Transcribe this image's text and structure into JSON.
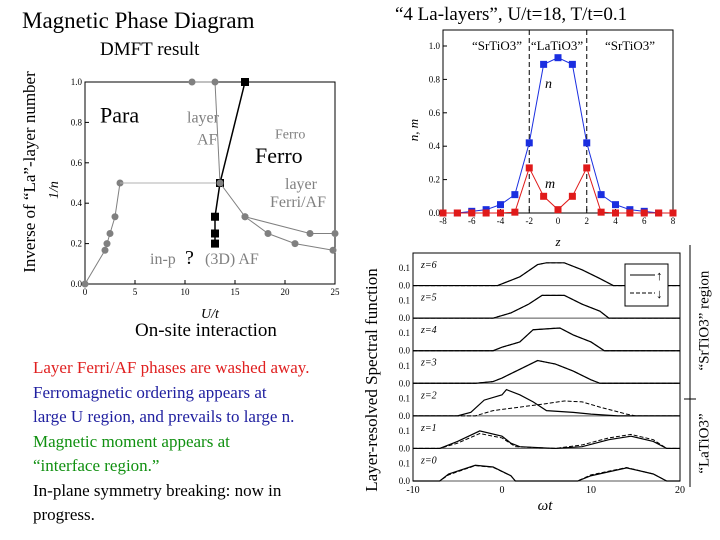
{
  "slide": {
    "title": "Magnetic Phase Diagram",
    "subtitle": "DMFT result",
    "left_ylabel": "Inverse of “La”-layer number",
    "top_right_title": "“4 La-layers”, U/t=18, T/t=0.1",
    "spectral_ylabel": "Layer-resolved Spectral function",
    "region_sr": "“SrTiO3” region",
    "region_la": "“LaTiO3”",
    "onsite": "On-site interaction",
    "notes": [
      {
        "text": "Layer Ferri/AF phases are washed away.",
        "color": "#e02020"
      },
      {
        "text": "Ferromagnetic ordering appears at",
        "color": "#2020a0"
      },
      {
        "text": "large U region, and prevails to large n.",
        "color": "#2020a0"
      },
      {
        "text": "Magnetic moment appears at",
        "color": "#109010"
      },
      {
        "text": "“interface region.”",
        "color": "#109010"
      },
      {
        "text": "In-plane symmetry breaking: now in",
        "color": "#000000"
      },
      {
        "text": "progress.",
        "color": "#000000"
      }
    ]
  },
  "chart_data": [
    {
      "type": "scatter",
      "title": "",
      "xlabel": "U/t",
      "ylabel": "1/n",
      "xlim": [
        0,
        25
      ],
      "ylim": [
        0,
        1
      ],
      "xticks": [
        "0",
        "5",
        "10",
        "15",
        "20",
        "25"
      ],
      "yticks": [
        "0.0",
        "0.2",
        "0.4",
        "0.6",
        "0.8",
        "1.0"
      ],
      "series": [
        {
          "marker": "circle",
          "color": "#808080",
          "points": [
            [
              0,
              0
            ],
            [
              2,
              0.167
            ],
            [
              2.2,
              0.2
            ],
            [
              2.5,
              0.25
            ],
            [
              3,
              0.333
            ],
            [
              3.5,
              0.5
            ]
          ]
        },
        {
          "marker": "none",
          "color": "#b0b0b0",
          "points": [
            [
              3.5,
              0.5
            ],
            [
              13.5,
              0.5
            ]
          ]
        },
        {
          "marker": "circle",
          "color": "#808080",
          "points": [
            [
              10.7,
              1.0
            ],
            [
              13,
              1.0
            ]
          ]
        },
        {
          "marker": "none",
          "color": "#808080",
          "points": [
            [
              13,
              1.0
            ],
            [
              13.5,
              0.5
            ]
          ]
        },
        {
          "marker": "square",
          "color": "#000000",
          "points": [
            [
              13,
              0.2
            ],
            [
              13,
              0.25
            ],
            [
              13,
              0.333
            ],
            [
              13.5,
              0.5
            ],
            [
              16,
              1.0
            ]
          ]
        },
        {
          "marker": "circle",
          "color": "#808080",
          "points": [
            [
              13.5,
              0.5
            ],
            [
              16,
              0.333
            ],
            [
              22.5,
              0.25
            ],
            [
              25,
              0.25
            ]
          ]
        },
        {
          "marker": "circle",
          "color": "#808080",
          "points": [
            [
              16,
              0.333
            ],
            [
              18.3,
              0.25
            ],
            [
              21,
              0.2
            ],
            [
              24.8,
              0.167
            ]
          ]
        }
      ],
      "annotations": [
        {
          "text": "Para",
          "x": 1.5,
          "y": 0.8,
          "color": "#000000",
          "size": 22
        },
        {
          "text": "layer",
          "x": 10.2,
          "y": 0.8,
          "color": "#808080",
          "size": 16
        },
        {
          "text": "AF",
          "x": 11.2,
          "y": 0.69,
          "color": "#808080",
          "size": 16
        },
        {
          "text": "Ferro",
          "x": 19,
          "y": 0.72,
          "color": "#808080",
          "size": 14
        },
        {
          "text": "Ferro",
          "x": 17,
          "y": 0.6,
          "color": "#000000",
          "size": 22
        },
        {
          "text": "layer",
          "x": 20,
          "y": 0.47,
          "color": "#808080",
          "size": 16
        },
        {
          "text": "Ferri/AF",
          "x": 18.5,
          "y": 0.38,
          "color": "#808080",
          "size": 16
        },
        {
          "text": "in-p",
          "x": 6.5,
          "y": 0.1,
          "color": "#808080",
          "size": 16
        },
        {
          "text": "?",
          "x": 10,
          "y": 0.1,
          "color": "#000000",
          "size": 20
        },
        {
          "text": "(3D) AF",
          "x": 12,
          "y": 0.1,
          "color": "#808080",
          "size": 16
        }
      ]
    },
    {
      "type": "line",
      "title": "",
      "xlabel": "z",
      "ylabel": "n, m",
      "xlim": [
        -8,
        8
      ],
      "ylim": [
        0,
        1.1
      ],
      "xticks": [
        "-8",
        "-6",
        "-4",
        "-2",
        "0",
        "2",
        "4",
        "6",
        "8"
      ],
      "yticks": [
        "0.0",
        "0.2",
        "0.4",
        "0.6",
        "0.8",
        "1.0"
      ],
      "x": [
        -8,
        -7,
        -6,
        -5,
        -4,
        -3,
        -2,
        -1,
        0,
        1,
        2,
        3,
        4,
        5,
        6,
        7,
        8
      ],
      "series": [
        {
          "name": "n",
          "color": "#1a2ee0",
          "values": [
            0,
            0,
            0.01,
            0.02,
            0.05,
            0.11,
            0.42,
            0.89,
            0.93,
            0.89,
            0.42,
            0.11,
            0.05,
            0.02,
            0.01,
            0,
            0
          ]
        },
        {
          "name": "m",
          "color": "#e01a1a",
          "values": [
            0,
            0,
            0,
            0,
            0,
            0.005,
            0.27,
            0.1,
            0.02,
            0.1,
            0.27,
            0.005,
            0,
            0,
            0,
            0,
            0
          ]
        }
      ],
      "region_labels": [
        "“SrTiO3”",
        "“LaTiO3”",
        "“SrTiO3”"
      ],
      "dashed_lines_x": [
        -2,
        2
      ]
    },
    {
      "type": "line",
      "title": "",
      "xlabel": "ωt",
      "ylabel": "",
      "xlim": [
        -10,
        20
      ],
      "ylim": [
        0,
        0.15
      ],
      "xticks": [
        "-10",
        "0",
        "10",
        "20"
      ],
      "yticks": [
        "0.0",
        "0.1"
      ],
      "legend": [
        "↑",
        "↓"
      ],
      "legend_position": "top-right",
      "panels": [
        {
          "label": "z=6",
          "up": [
            [
              -10,
              0
            ],
            [
              -0.5,
              0
            ],
            [
              0,
              0.01
            ],
            [
              2,
              0.05
            ],
            [
              4,
              0.12
            ],
            [
              5,
              0.13
            ],
            [
              7,
              0.13
            ],
            [
              9,
              0.09
            ],
            [
              11,
              0.04
            ],
            [
              12.5,
              0
            ],
            [
              20,
              0
            ]
          ],
          "down": [
            [
              -10,
              0
            ],
            [
              -0.5,
              0
            ],
            [
              0,
              0.01
            ],
            [
              2,
              0.05
            ],
            [
              4,
              0.12
            ],
            [
              5,
              0.13
            ],
            [
              7,
              0.13
            ],
            [
              9,
              0.09
            ],
            [
              11,
              0.04
            ],
            [
              12.5,
              0
            ],
            [
              20,
              0
            ]
          ]
        },
        {
          "label": "z=5",
          "up": [
            [
              -10,
              0
            ],
            [
              -1,
              0
            ],
            [
              1,
              0.03
            ],
            [
              3,
              0.08
            ],
            [
              4.5,
              0.13
            ],
            [
              7,
              0.13
            ],
            [
              9,
              0.08
            ],
            [
              11,
              0.04
            ],
            [
              12,
              0
            ],
            [
              20,
              0
            ]
          ],
          "down": [
            [
              -10,
              0
            ],
            [
              -1,
              0
            ],
            [
              1,
              0.03
            ],
            [
              3,
              0.08
            ],
            [
              4.5,
              0.13
            ],
            [
              7,
              0.13
            ],
            [
              9,
              0.08
            ],
            [
              11,
              0.04
            ],
            [
              12,
              0
            ],
            [
              20,
              0
            ]
          ]
        },
        {
          "label": "z=4",
          "up": [
            [
              -10,
              0
            ],
            [
              -1,
              0
            ],
            [
              0,
              0.02
            ],
            [
              2,
              0.05
            ],
            [
              3.5,
              0.12
            ],
            [
              6.5,
              0.13
            ],
            [
              8,
              0.09
            ],
            [
              10,
              0.05
            ],
            [
              11.5,
              0
            ],
            [
              20,
              0
            ]
          ],
          "down": [
            [
              -10,
              0
            ],
            [
              -1,
              0
            ],
            [
              0,
              0.02
            ],
            [
              2,
              0.05
            ],
            [
              3.5,
              0.12
            ],
            [
              6.5,
              0.13
            ],
            [
              8,
              0.09
            ],
            [
              10,
              0.05
            ],
            [
              11.5,
              0
            ],
            [
              20,
              0
            ]
          ]
        },
        {
          "label": "z=3",
          "up": [
            [
              -10,
              0
            ],
            [
              -3,
              0
            ],
            [
              -1,
              0.01
            ],
            [
              0,
              0.03
            ],
            [
              2,
              0.08
            ],
            [
              4,
              0.13
            ],
            [
              6,
              0.11
            ],
            [
              8,
              0.07
            ],
            [
              10,
              0.02
            ],
            [
              11,
              0
            ],
            [
              20,
              0
            ]
          ],
          "down": [
            [
              -10,
              0
            ],
            [
              -3,
              0
            ],
            [
              -1,
              0.01
            ],
            [
              0,
              0.03
            ],
            [
              2,
              0.08
            ],
            [
              4,
              0.13
            ],
            [
              6,
              0.11
            ],
            [
              8,
              0.07
            ],
            [
              10,
              0.02
            ],
            [
              11,
              0
            ],
            [
              20,
              0
            ]
          ]
        },
        {
          "label": "z=2",
          "up": [
            [
              -10,
              0
            ],
            [
              -5,
              0
            ],
            [
              -3.5,
              0.02
            ],
            [
              -2,
              0.09
            ],
            [
              0,
              0.12
            ],
            [
              0.5,
              0.15
            ],
            [
              2,
              0.12
            ],
            [
              3.5,
              0.08
            ],
            [
              5,
              0.03
            ],
            [
              8,
              0.02
            ],
            [
              10,
              0.01
            ],
            [
              13,
              0
            ],
            [
              20,
              0
            ]
          ],
          "down": [
            [
              -10,
              0
            ],
            [
              -3,
              0
            ],
            [
              -1,
              0.03
            ],
            [
              2,
              0.05
            ],
            [
              5,
              0.07
            ],
            [
              7,
              0.085
            ],
            [
              9,
              0.08
            ],
            [
              11,
              0.05
            ],
            [
              14,
              0.01
            ],
            [
              15,
              0
            ],
            [
              20,
              0
            ]
          ]
        },
        {
          "label": "z=1",
          "up": [
            [
              -10,
              0
            ],
            [
              -7,
              0
            ],
            [
              -5,
              0.04
            ],
            [
              -2.5,
              0.1
            ],
            [
              0,
              0.07
            ],
            [
              1,
              0.03
            ],
            [
              2,
              0.01
            ],
            [
              6,
              0
            ],
            [
              9,
              0.01
            ],
            [
              12,
              0.05
            ],
            [
              14.5,
              0.07
            ],
            [
              17,
              0.04
            ],
            [
              18.5,
              0
            ],
            [
              20,
              0
            ]
          ],
          "down": [
            [
              -10,
              0
            ],
            [
              -7,
              0
            ],
            [
              -5,
              0.03
            ],
            [
              -2.5,
              0.085
            ],
            [
              0,
              0.06
            ],
            [
              1.5,
              0.01
            ],
            [
              6,
              0
            ],
            [
              9,
              0.02
            ],
            [
              12,
              0.06
            ],
            [
              14.5,
              0.08
            ],
            [
              17,
              0.05
            ],
            [
              18.5,
              0
            ],
            [
              20,
              0
            ]
          ]
        },
        {
          "label": "z=0",
          "up": [
            [
              -10,
              0
            ],
            [
              -7,
              0
            ],
            [
              -6,
              0.04
            ],
            [
              -3,
              0.09
            ],
            [
              -1,
              0.08
            ],
            [
              1,
              0.03
            ],
            [
              1.5,
              0
            ],
            [
              8.5,
              0
            ],
            [
              10,
              0.03
            ],
            [
              14,
              0.075
            ],
            [
              17,
              0.04
            ],
            [
              18.5,
              0
            ],
            [
              20,
              0
            ]
          ],
          "down": [
            [
              -10,
              0
            ],
            [
              -7,
              0
            ],
            [
              -6,
              0.035
            ],
            [
              -3,
              0.088
            ],
            [
              -1,
              0.078
            ],
            [
              1,
              0.03
            ],
            [
              1.5,
              0
            ],
            [
              8.5,
              0
            ],
            [
              10,
              0.035
            ],
            [
              14,
              0.077
            ],
            [
              17,
              0.04
            ],
            [
              18.5,
              0
            ],
            [
              20,
              0
            ]
          ]
        }
      ]
    }
  ]
}
